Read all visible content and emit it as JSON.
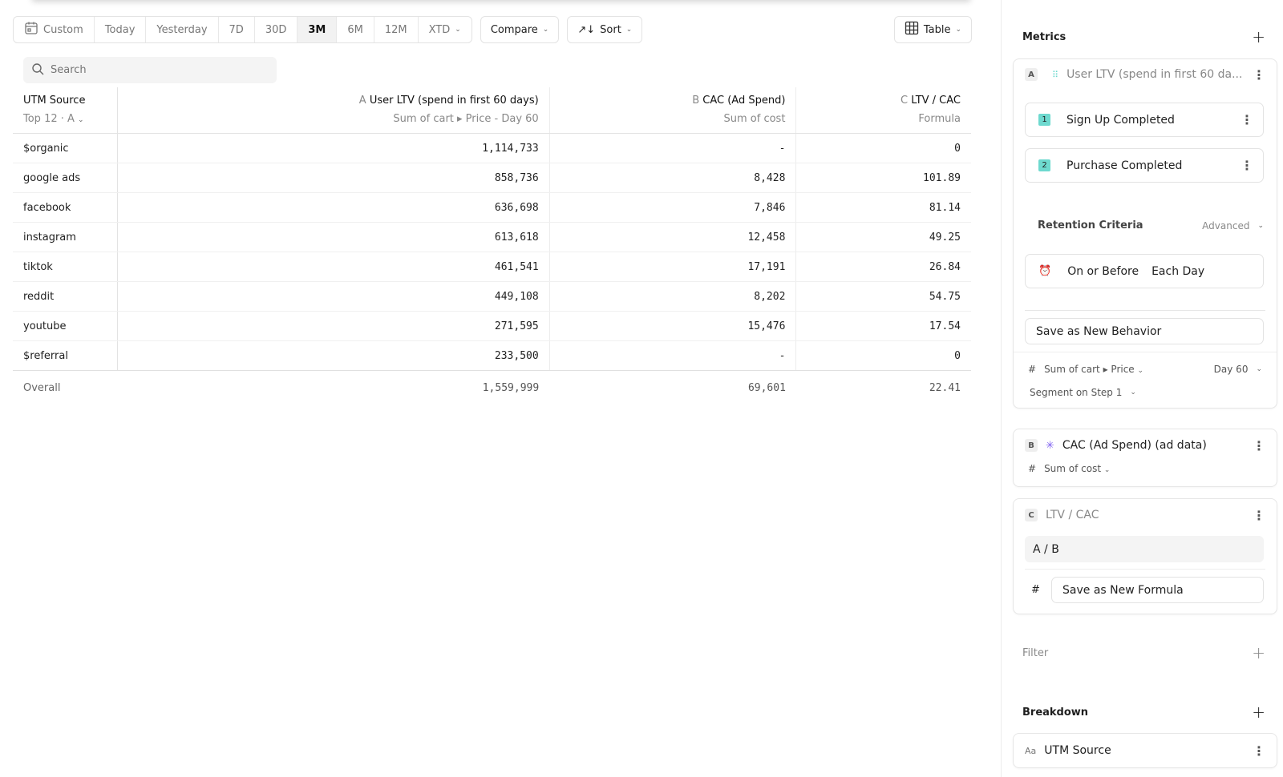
{
  "toolbar": {
    "date_ranges": [
      "Custom",
      "Today",
      "Yesterday",
      "7D",
      "30D",
      "3M",
      "6M",
      "12M",
      "XTD"
    ],
    "active": "3M",
    "compare": "Compare",
    "sort": "Sort",
    "view": "Table"
  },
  "search": {
    "placeholder": "Search"
  },
  "table": {
    "col0": {
      "title": "UTM Source",
      "sub": "Top 12 · A"
    },
    "cols": [
      {
        "letter": "A",
        "title": "User LTV (spend in first 60 days)",
        "sub": "Sum of cart ▸ Price - Day 60"
      },
      {
        "letter": "B",
        "title": "CAC (Ad Spend)",
        "sub": "Sum of cost"
      },
      {
        "letter": "C",
        "title": "LTV / CAC",
        "sub": "Formula"
      }
    ],
    "rows": [
      [
        "$organic",
        "1,114,733",
        "-",
        "0"
      ],
      [
        "google ads",
        "858,736",
        "8,428",
        "101.89"
      ],
      [
        "facebook",
        "636,698",
        "7,846",
        "81.14"
      ],
      [
        "instagram",
        "613,618",
        "12,458",
        "49.25"
      ],
      [
        "tiktok",
        "461,541",
        "17,191",
        "26.84"
      ],
      [
        "reddit",
        "449,108",
        "8,202",
        "54.75"
      ],
      [
        "youtube",
        "271,595",
        "15,476",
        "17.54"
      ],
      [
        "$referral",
        "233,500",
        "-",
        "0"
      ]
    ],
    "overall": [
      "Overall",
      "1,559,999",
      "69,601",
      "22.41"
    ]
  },
  "panel": {
    "metrics_title": "Metrics",
    "a": {
      "letter": "A",
      "title": "User LTV (spend in first 60 da...",
      "steps": [
        {
          "n": "1",
          "label": "Sign Up Completed"
        },
        {
          "n": "2",
          "label": "Purchase Completed"
        }
      ],
      "retention": "Retention Criteria",
      "advanced": "Advanced",
      "on_or_before": "On or Before",
      "each_day": "Each Day",
      "save": "Save as New Behavior",
      "hash": "#",
      "measure": "Sum of cart ▸ Price",
      "day": "Day 60",
      "segment": "Segment on Step 1"
    },
    "b": {
      "letter": "B",
      "title": "CAC (Ad Spend) (ad data)",
      "measure": "Sum of cost"
    },
    "c": {
      "letter": "C",
      "title": "LTV / CAC",
      "formula": "A / B",
      "save": "Save as New Formula"
    },
    "filter": "Filter",
    "breakdown": "Breakdown",
    "breakdown_item_type": "Aa",
    "breakdown_item": "UTM Source"
  },
  "colors": {
    "step_badge": "#6ed9cf",
    "accent_purple": "#7b5cf0"
  }
}
